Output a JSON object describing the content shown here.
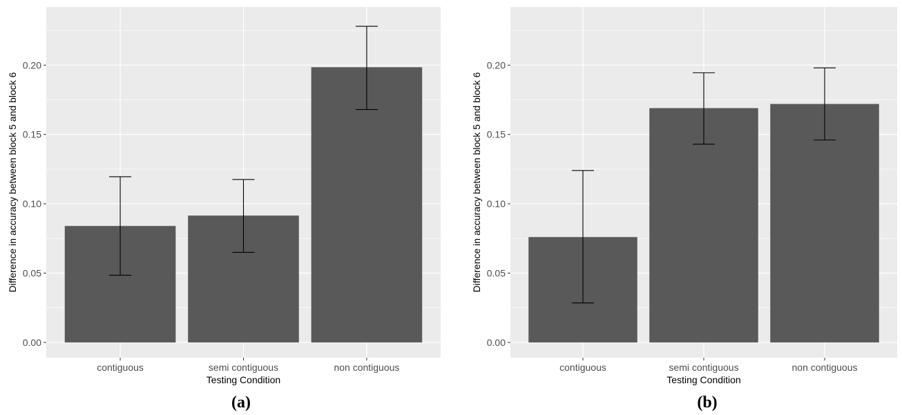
{
  "colors": {
    "panel_bg": "#ebebeb",
    "grid_major": "#ffffff",
    "bar_fill": "#595959",
    "errorbar": "#000000",
    "tick_text": "#4d4d4d"
  },
  "chart_data": [
    {
      "type": "bar",
      "panel_label": "(a)",
      "categories": [
        "contiguous",
        "semi contiguous",
        "non contiguous"
      ],
      "values": [
        0.084,
        0.0915,
        0.1985
      ],
      "error_low": [
        0.0485,
        0.065,
        0.168
      ],
      "error_high": [
        0.1195,
        0.1175,
        0.228
      ],
      "xlabel": "Testing Condition",
      "ylabel": "Difference in accuracy between block 5 and block 6",
      "ylim": [
        -0.011,
        0.242
      ],
      "yticks": [
        0.0,
        0.05,
        0.1,
        0.15,
        0.2
      ],
      "ytick_labels": [
        "0.00",
        "0.05",
        "0.10",
        "0.15",
        "0.20"
      ],
      "grid": true
    },
    {
      "type": "bar",
      "panel_label": "(b)",
      "categories": [
        "contiguous",
        "semi contiguous",
        "non contiguous"
      ],
      "values": [
        0.076,
        0.169,
        0.172
      ],
      "error_low": [
        0.0285,
        0.143,
        0.146
      ],
      "error_high": [
        0.124,
        0.1945,
        0.198
      ],
      "xlabel": "Testing Condition",
      "ylabel": "Difference in accuracy between block 5 and block 6",
      "ylim": [
        -0.011,
        0.242
      ],
      "yticks": [
        0.0,
        0.05,
        0.1,
        0.15,
        0.2
      ],
      "ytick_labels": [
        "0.00",
        "0.05",
        "0.10",
        "0.15",
        "0.20"
      ],
      "grid": true
    }
  ]
}
